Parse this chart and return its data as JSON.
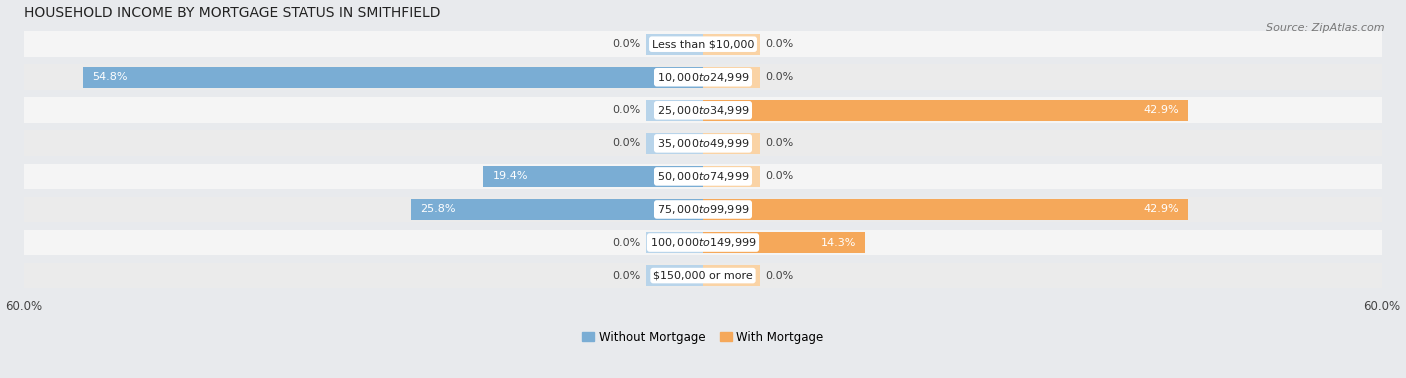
{
  "title": "HOUSEHOLD INCOME BY MORTGAGE STATUS IN SMITHFIELD",
  "source": "Source: ZipAtlas.com",
  "categories": [
    "Less than $10,000",
    "$10,000 to $24,999",
    "$25,000 to $34,999",
    "$35,000 to $49,999",
    "$50,000 to $74,999",
    "$75,000 to $99,999",
    "$100,000 to $149,999",
    "$150,000 or more"
  ],
  "without_mortgage": [
    0.0,
    54.8,
    0.0,
    0.0,
    19.4,
    25.8,
    0.0,
    0.0
  ],
  "with_mortgage": [
    0.0,
    0.0,
    42.9,
    0.0,
    0.0,
    42.9,
    14.3,
    0.0
  ],
  "color_without": "#7aadd4",
  "color_with": "#f5a85a",
  "color_without_stub": "#b8d4ea",
  "color_with_stub": "#fad3a5",
  "axis_max": 60.0,
  "stub_val": 5.0,
  "background_color": "#e8eaed",
  "row_bg_color": "#f5f5f5",
  "row_alt_color": "#ebebeb",
  "legend_without": "Without Mortgage",
  "legend_with": "With Mortgage",
  "title_fontsize": 10,
  "label_fontsize": 8,
  "value_fontsize": 8,
  "tick_fontsize": 8.5,
  "source_fontsize": 8
}
